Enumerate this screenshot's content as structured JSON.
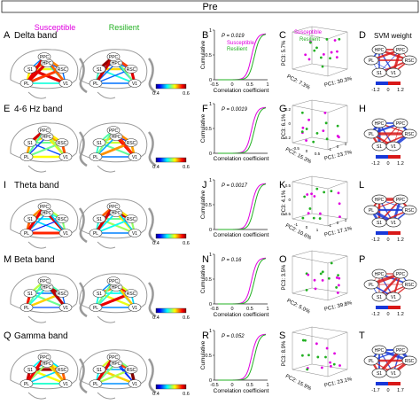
{
  "header": {
    "title": "Pre"
  },
  "legend_labels": {
    "susceptible": "Susceptible",
    "resilient": "Resilient",
    "svm_title": "SVM weight"
  },
  "colors": {
    "susceptible": "#e000e0",
    "resilient": "#22b022",
    "brain_outline": "#9a9a9a",
    "node_fill": "#ffffff",
    "text": "#111111"
  },
  "node_labels": [
    "HPC",
    "PPC",
    "RSC",
    "V1",
    "S1",
    "PL"
  ],
  "brain_region_labels": [
    "S1",
    "HPC",
    "PL",
    "V1",
    "RSC",
    "PPC"
  ],
  "axis_labels": {
    "cumulative": "Cumulative",
    "correlation": "Correlation coefficient"
  },
  "rows": [
    {
      "band": "Delta band",
      "panels": [
        "A",
        "B",
        "C",
        "D"
      ],
      "colorbar": {
        "min": "0.4",
        "max": "0.6"
      },
      "cdf": {
        "p": "P = 0.019",
        "has_star": true,
        "show_legend": true,
        "xticks": [
          "-0.5",
          "0",
          "0.5",
          "1"
        ],
        "yticks": [
          "0",
          "0.5",
          "1"
        ]
      },
      "pca": {
        "x": "PC1: 30.3%",
        "y": "PC2: 7.3%",
        "z": "PC3: 5.7%",
        "show_legend": true,
        "z_ticks": [],
        "y_ticks": [],
        "x_ticks": []
      },
      "svm": {
        "ticks": [
          "-1.2",
          "0",
          "1.2"
        ]
      }
    },
    {
      "band": "4-6 Hz band",
      "panels": [
        "E",
        "F",
        "G",
        "H"
      ],
      "colorbar": {
        "min": "0.4",
        "max": "0.6"
      },
      "cdf": {
        "p": "P = 0.0019",
        "has_star": true,
        "show_legend": false,
        "xticks": [],
        "yticks": [
          "0",
          "0.5",
          "1"
        ]
      },
      "pca": {
        "x": "PC1: 23.7%",
        "y": "PC2: 15.3%",
        "z": "PC3: 6.1%",
        "show_legend": false,
        "z_ticks": [
          "0.2",
          "0",
          "-0.2"
        ],
        "y_ticks": [
          "-0.5",
          "0",
          "0.5"
        ],
        "x_ticks": [
          "-1",
          "0",
          "1"
        ]
      },
      "svm": {
        "ticks": [
          "-1.2",
          "0",
          "1.2"
        ]
      }
    },
    {
      "band": "Theta band",
      "panels": [
        "I",
        "J",
        "K",
        "L"
      ],
      "colorbar": {
        "min": "0.4",
        "max": "0.6"
      },
      "cdf": {
        "p": "P = 0.0017",
        "has_star": true,
        "show_legend": false,
        "xticks": [],
        "yticks": [
          "0",
          "0.5",
          "1"
        ]
      },
      "pca": {
        "x": "PC1: 17.1%",
        "y": "PC2: 10.6%",
        "z": "PC3: 4.1%",
        "show_legend": false,
        "z_ticks": [
          "0.5",
          "0",
          "-0.5"
        ],
        "y_ticks": [
          "-1",
          "0",
          "1"
        ],
        "x_ticks": [
          "-1",
          "0",
          "1"
        ]
      },
      "svm": {
        "ticks": [
          "-1.2",
          "0",
          "1.2"
        ]
      }
    },
    {
      "band": "Beta band",
      "panels": [
        "M",
        "N",
        "O",
        "P"
      ],
      "colorbar": {
        "min": "0.4",
        "max": "0.6"
      },
      "cdf": {
        "p": "P = 0.16",
        "has_star": false,
        "show_legend": false,
        "xticks": [
          "-0.8",
          "0",
          "0.5",
          "1"
        ],
        "yticks": [
          "0",
          "0.5",
          "1"
        ]
      },
      "pca": {
        "x": "PC1: 39.8%",
        "y": "PC2: 5.0%",
        "z": "PC3: 3.5%",
        "show_legend": false,
        "z_ticks": [],
        "y_ticks": [],
        "x_ticks": []
      },
      "svm": {
        "ticks": [
          "-1.2",
          "0",
          "1.2"
        ]
      }
    },
    {
      "band": "Gamma band",
      "panels": [
        "Q",
        "R",
        "S",
        "T"
      ],
      "colorbar": {
        "min": "0.4",
        "max": "0.6"
      },
      "cdf": {
        "p": "P = 0.052",
        "has_star": false,
        "show_legend": false,
        "xticks": [
          "-0.5",
          "0",
          "0.5",
          "1"
        ],
        "yticks": [
          "0",
          "0.5",
          "1"
        ]
      },
      "pca": {
        "x": "PC1: 23.1%",
        "y": "PC2: 15.9%",
        "z": "PC3: 8.9%",
        "show_legend": false,
        "z_ticks": [],
        "y_ticks": [],
        "x_ticks": []
      },
      "svm": {
        "ticks": [
          "-1.7",
          "0",
          "1.7"
        ]
      }
    }
  ]
}
